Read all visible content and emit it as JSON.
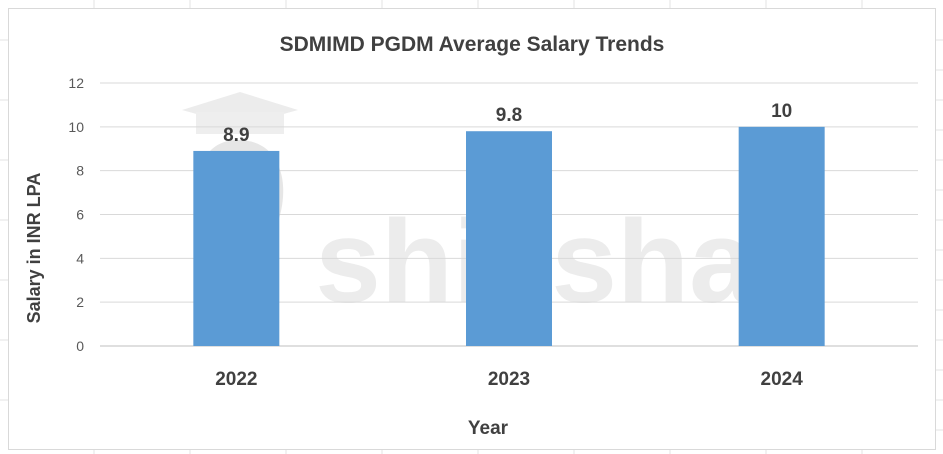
{
  "chart_data": {
    "type": "bar",
    "title": "SDMIMD PGDM Average Salary Trends",
    "xlabel": "Year",
    "ylabel": "Salary in INR LPA",
    "categories": [
      "2022",
      "2023",
      "2024"
    ],
    "values": [
      8.9,
      9.8,
      10
    ],
    "data_labels": [
      "8.9",
      "9.8",
      "10"
    ],
    "yticks": [
      "0",
      "2",
      "4",
      "6",
      "8",
      "10",
      "12"
    ],
    "ylim": [
      0,
      12
    ],
    "grid": true,
    "legend": "none",
    "bar_color": "#5b9bd5"
  },
  "watermark": {
    "text": "shiksha",
    "color": "#e9e9e9"
  }
}
